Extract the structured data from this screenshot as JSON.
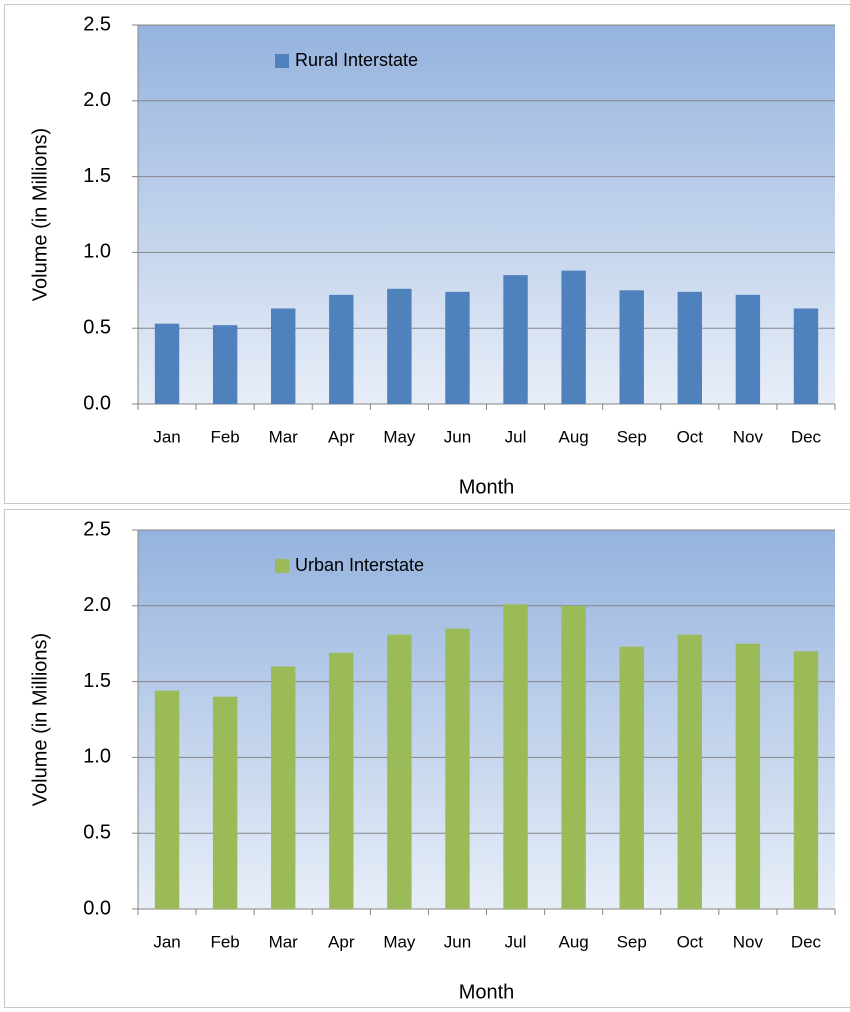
{
  "chart_data": [
    {
      "type": "bar",
      "x_label": "Month",
      "y_label": "Volume (in Millions)",
      "categories": [
        "Jan",
        "Feb",
        "Mar",
        "Apr",
        "May",
        "Jun",
        "Jul",
        "Aug",
        "Sep",
        "Oct",
        "Nov",
        "Dec"
      ],
      "series": [
        {
          "name": "Rural Interstate",
          "color": "#4f81bd",
          "values": [
            0.53,
            0.52,
            0.63,
            0.72,
            0.76,
            0.74,
            0.85,
            0.88,
            0.75,
            0.74,
            0.72,
            0.63
          ]
        }
      ],
      "ylim": [
        0,
        2.5
      ],
      "yticks": [
        {
          "value": 0,
          "label": "0.0"
        },
        0.5,
        {
          "value": 1,
          "label": "1.0"
        },
        1.5,
        {
          "value": 2,
          "label": "2.0"
        },
        2.5
      ],
      "grid": true,
      "legend": "upper left"
    },
    {
      "type": "bar",
      "x_label": "Month",
      "y_label": "Volume (in Millions)",
      "categories": [
        "Jan",
        "Feb",
        "Mar",
        "Apr",
        "May",
        "Jun",
        "Jul",
        "Aug",
        "Sep",
        "Oct",
        "Nov",
        "Dec"
      ],
      "series": [
        {
          "name": "Urban Interstate",
          "color": "#9bbb59",
          "values": [
            1.44,
            1.4,
            1.6,
            1.69,
            1.81,
            1.85,
            2.01,
            2.0,
            1.73,
            1.81,
            1.75,
            1.7
          ]
        }
      ],
      "ylim": [
        0,
        2.5
      ],
      "yticks": [
        {
          "value": 0,
          "label": "0.0"
        },
        0.5,
        {
          "value": 1,
          "label": "1.0"
        },
        1.5,
        {
          "value": 2,
          "label": "2.0"
        },
        2.5
      ],
      "grid": true,
      "legend": "upper left"
    }
  ]
}
